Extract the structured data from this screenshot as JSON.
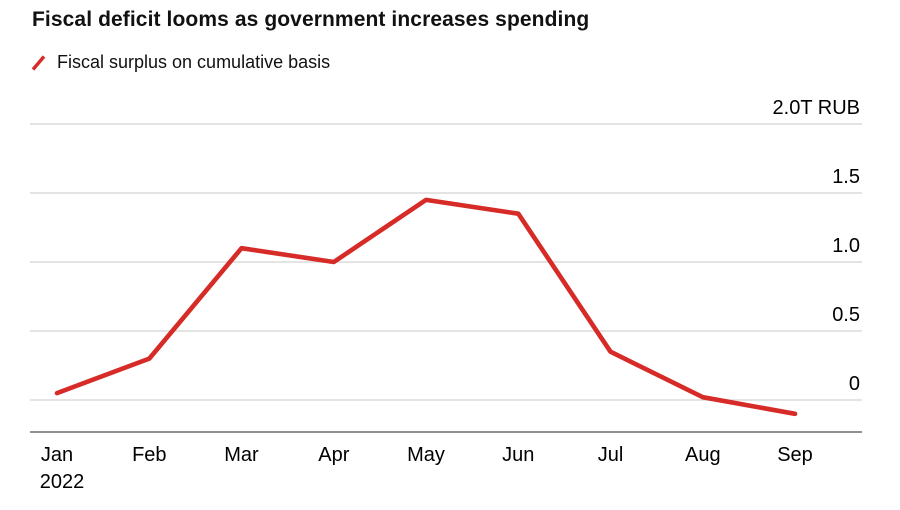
{
  "page": {
    "background": "#ffffff"
  },
  "header": {
    "title": "Fiscal deficit looms as government increases spending"
  },
  "legend": {
    "label": "Fiscal surplus on cumulative basis",
    "marker_color": "#d62b27"
  },
  "chart_data": {
    "type": "line",
    "title": "Fiscal deficit looms as government increases spending",
    "legend": "Fiscal surplus on cumulative basis",
    "x": [
      "Jan",
      "Feb",
      "Mar",
      "Apr",
      "May",
      "Jun",
      "Jul",
      "Aug",
      "Sep"
    ],
    "x_year_label": "2022",
    "x_year_under_index": 0,
    "values": [
      0.05,
      0.3,
      1.1,
      1.0,
      1.45,
      1.35,
      0.35,
      0.02,
      -0.1
    ],
    "unit": "T RUB",
    "y_ticks": [
      0,
      0.5,
      1.0,
      1.5,
      2.0
    ],
    "y_tick_labels": [
      "0",
      "0.5",
      "1.0",
      "1.5",
      "2.0T RUB"
    ],
    "ylim": [
      -0.25,
      2.0
    ],
    "line_color": "#d62b27",
    "gridline_color": "#dcdcdc",
    "axis_line_color": "#8f8f8f",
    "grid": true,
    "legend_position": "top-left",
    "y_labels_position": "right"
  }
}
